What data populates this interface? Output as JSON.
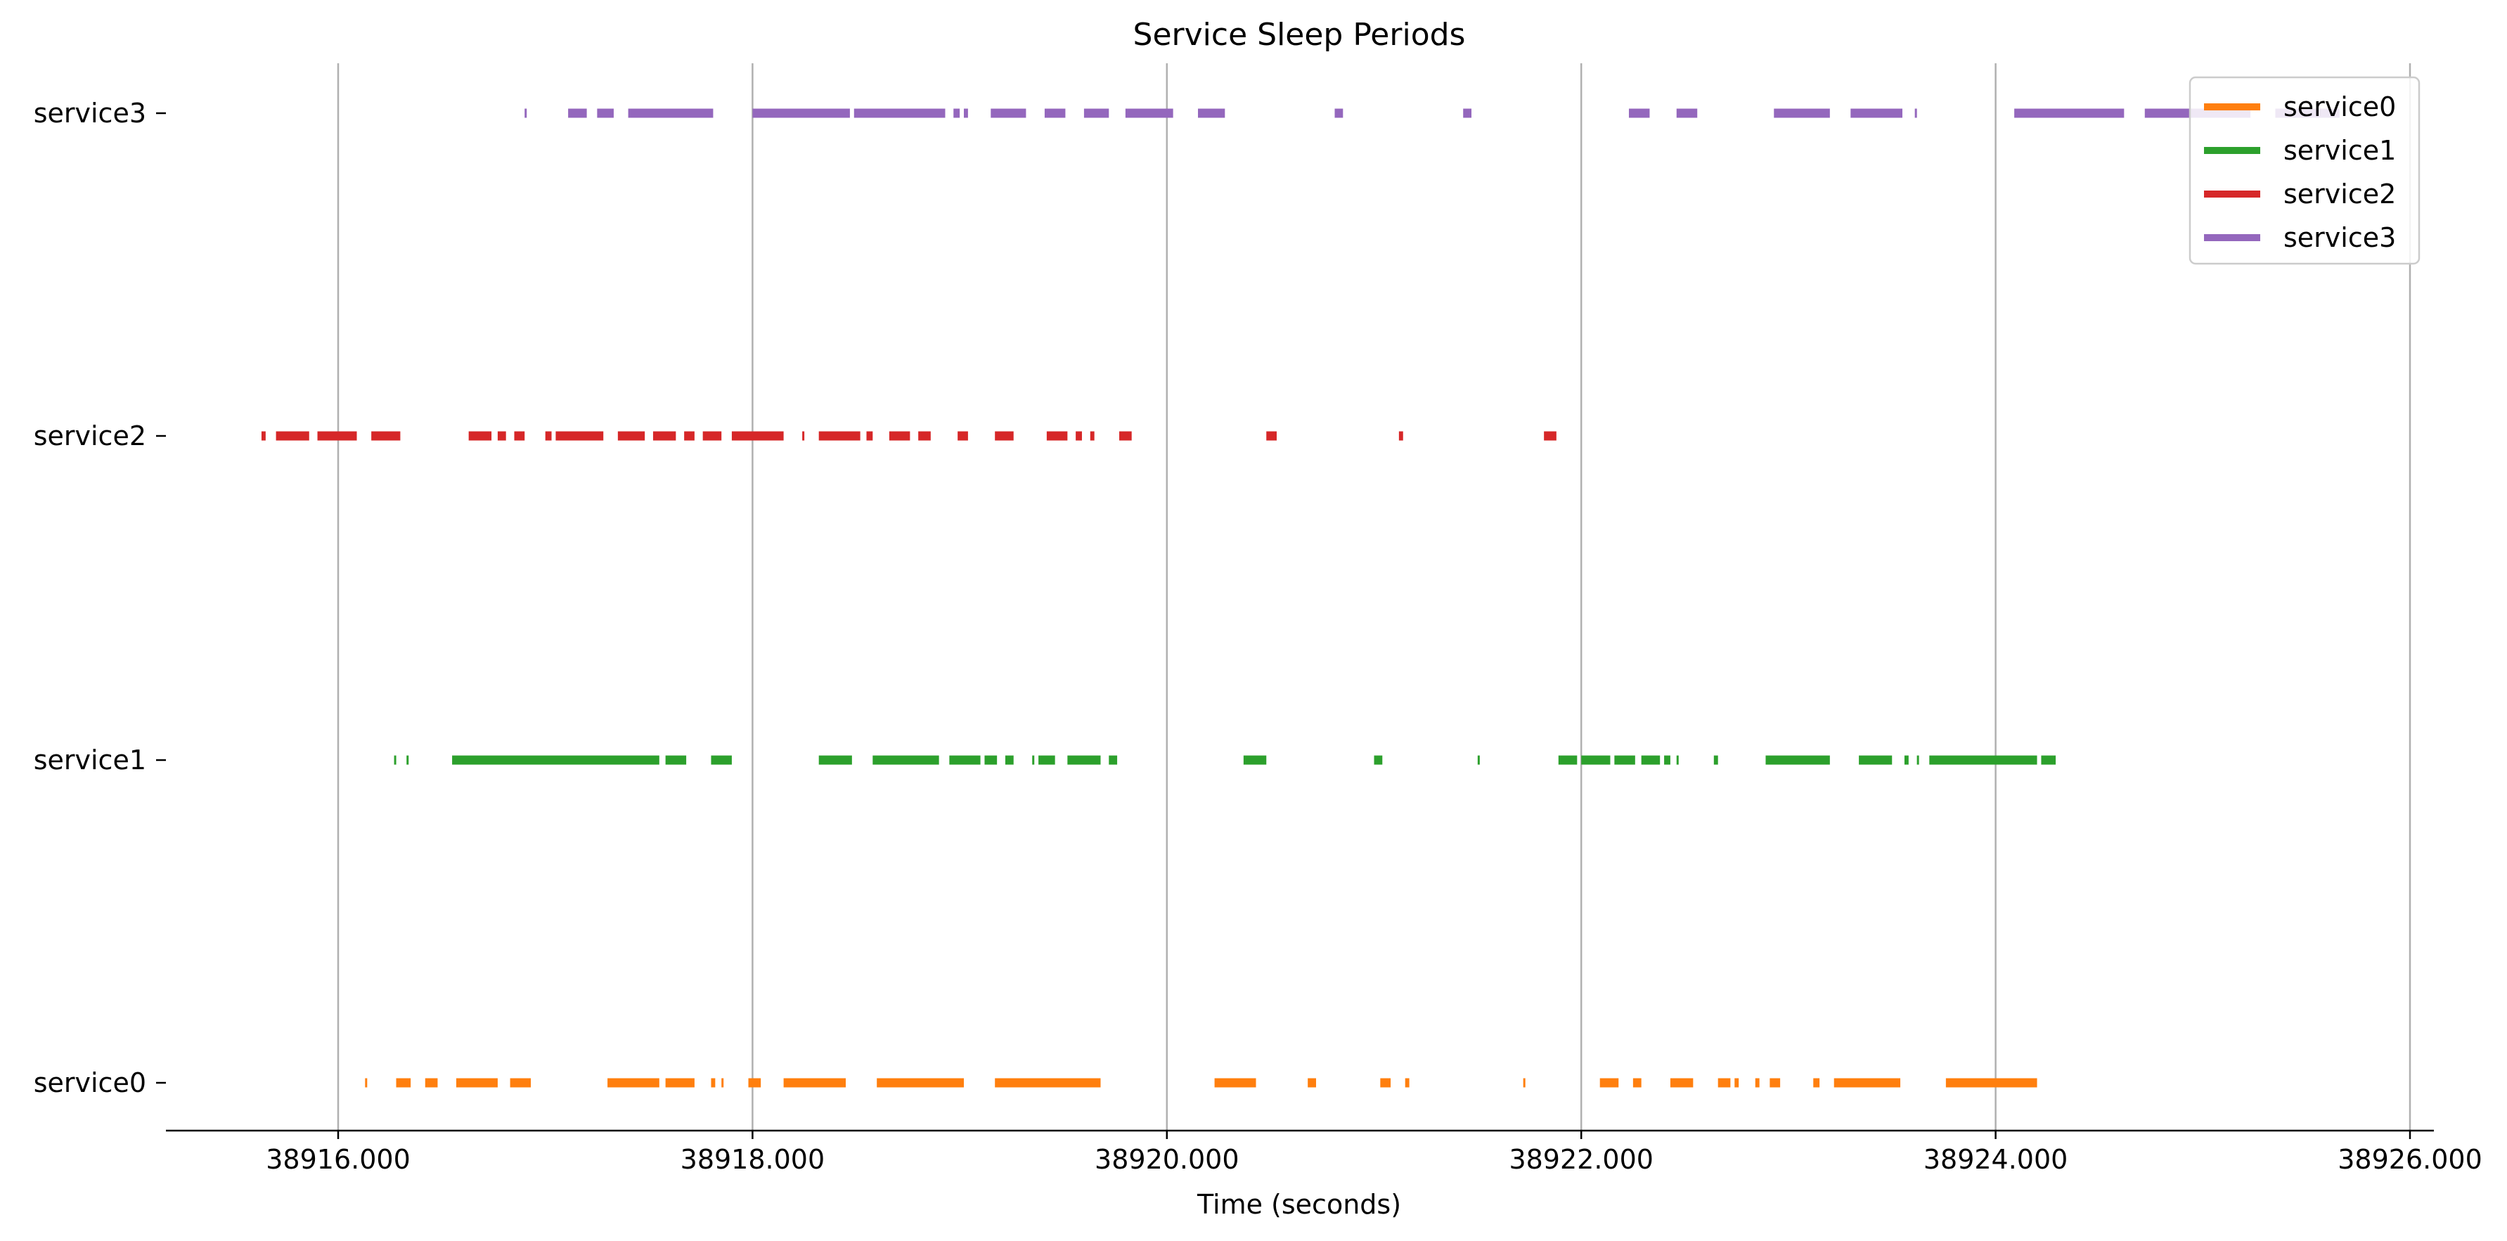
{
  "chart_data": {
    "type": "timeline",
    "title": "Service Sleep Periods",
    "xlabel": "Time (seconds)",
    "ylabel": "",
    "xlim": [
      38915.2,
      38926.1
    ],
    "x_ticks": [
      38916,
      38918,
      38920,
      38922,
      38924,
      38926
    ],
    "x_tick_labels": [
      "38916.000",
      "38918.000",
      "38920.000",
      "38922.000",
      "38924.000",
      "38926.000"
    ],
    "grid": "vertical",
    "legend_position": "top-right",
    "categories": [
      "service0",
      "service1",
      "service2",
      "service3"
    ],
    "series": [
      {
        "name": "service0",
        "color": "#ff7f0e",
        "intervals": [
          [
            38916.13,
            38916.14
          ],
          [
            38916.28,
            38916.35
          ],
          [
            38916.42,
            38916.48
          ],
          [
            38916.57,
            38916.77
          ],
          [
            38916.83,
            38916.93
          ],
          [
            38917.3,
            38917.55
          ],
          [
            38917.58,
            38917.72
          ],
          [
            38917.8,
            38917.82
          ],
          [
            38917.85,
            38917.86
          ],
          [
            38917.98,
            38918.04
          ],
          [
            38918.15,
            38918.45
          ],
          [
            38918.6,
            38919.02
          ],
          [
            38919.17,
            38919.68
          ],
          [
            38920.23,
            38920.43
          ],
          [
            38920.68,
            38920.72
          ],
          [
            38921.03,
            38921.08
          ],
          [
            38921.15,
            38921.17
          ],
          [
            38921.72,
            38921.73
          ],
          [
            38922.09,
            38922.18
          ],
          [
            38922.25,
            38922.29
          ],
          [
            38922.43,
            38922.54
          ],
          [
            38922.66,
            38922.72
          ],
          [
            38922.74,
            38922.76
          ],
          [
            38922.84,
            38922.86
          ],
          [
            38922.91,
            38922.96
          ],
          [
            38923.12,
            38923.15
          ],
          [
            38923.22,
            38923.54
          ],
          [
            38923.76,
            38924.2
          ]
        ]
      },
      {
        "name": "service1",
        "color": "#2ca02c",
        "intervals": [
          [
            38916.27,
            38916.28
          ],
          [
            38916.33,
            38916.34
          ],
          [
            38916.55,
            38917.55
          ],
          [
            38917.58,
            38917.68
          ],
          [
            38917.8,
            38917.9
          ],
          [
            38918.32,
            38918.48
          ],
          [
            38918.58,
            38918.9
          ],
          [
            38918.95,
            38919.1
          ],
          [
            38919.12,
            38919.18
          ],
          [
            38919.22,
            38919.26
          ],
          [
            38919.35,
            38919.36
          ],
          [
            38919.38,
            38919.46
          ],
          [
            38919.52,
            38919.68
          ],
          [
            38919.72,
            38919.76
          ],
          [
            38920.37,
            38920.48
          ],
          [
            38921.0,
            38921.04
          ],
          [
            38921.5,
            38921.51
          ],
          [
            38921.89,
            38921.98
          ],
          [
            38922.0,
            38922.14
          ],
          [
            38922.16,
            38922.26
          ],
          [
            38922.29,
            38922.38
          ],
          [
            38922.4,
            38922.43
          ],
          [
            38922.46,
            38922.47
          ],
          [
            38922.64,
            38922.66
          ],
          [
            38922.89,
            38923.2
          ],
          [
            38923.34,
            38923.5
          ],
          [
            38923.56,
            38923.58
          ],
          [
            38923.62,
            38923.63
          ],
          [
            38923.68,
            38924.2
          ],
          [
            38924.22,
            38924.29
          ]
        ]
      },
      {
        "name": "service2",
        "color": "#d62728",
        "intervals": [
          [
            38915.63,
            38915.65
          ],
          [
            38915.7,
            38915.86
          ],
          [
            38915.9,
            38916.09
          ],
          [
            38916.16,
            38916.3
          ],
          [
            38916.63,
            38916.74
          ],
          [
            38916.77,
            38916.81
          ],
          [
            38916.85,
            38916.9
          ],
          [
            38917.0,
            38917.03
          ],
          [
            38917.05,
            38917.28
          ],
          [
            38917.35,
            38917.48
          ],
          [
            38917.52,
            38917.63
          ],
          [
            38917.67,
            38917.72
          ],
          [
            38917.76,
            38917.85
          ],
          [
            38917.9,
            38918.15
          ],
          [
            38918.24,
            38918.25
          ],
          [
            38918.32,
            38918.52
          ],
          [
            38918.55,
            38918.58
          ],
          [
            38918.66,
            38918.76
          ],
          [
            38918.8,
            38918.86
          ],
          [
            38918.99,
            38919.04
          ],
          [
            38919.17,
            38919.26
          ],
          [
            38919.42,
            38919.52
          ],
          [
            38919.56,
            38919.59
          ],
          [
            38919.63,
            38919.65
          ],
          [
            38919.77,
            38919.83
          ],
          [
            38920.48,
            38920.53
          ],
          [
            38921.12,
            38921.14
          ],
          [
            38921.82,
            38921.88
          ]
        ]
      },
      {
        "name": "service3",
        "color": "#9467bd",
        "intervals": [
          [
            38916.9,
            38916.91
          ],
          [
            38917.11,
            38917.2
          ],
          [
            38917.25,
            38917.33
          ],
          [
            38917.4,
            38917.81
          ],
          [
            38918.0,
            38918.47
          ],
          [
            38918.49,
            38918.93
          ],
          [
            38918.97,
            38919.0
          ],
          [
            38919.02,
            38919.04
          ],
          [
            38919.15,
            38919.32
          ],
          [
            38919.41,
            38919.51
          ],
          [
            38919.6,
            38919.72
          ],
          [
            38919.8,
            38920.03
          ],
          [
            38920.15,
            38920.28
          ],
          [
            38920.81,
            38920.85
          ],
          [
            38921.43,
            38921.47
          ],
          [
            38922.23,
            38922.33
          ],
          [
            38922.46,
            38922.56
          ],
          [
            38922.93,
            38923.2
          ],
          [
            38923.3,
            38923.55
          ],
          [
            38923.61,
            38923.62
          ],
          [
            38924.09,
            38924.62
          ],
          [
            38924.72,
            38925.23
          ],
          [
            38925.35,
            38925.66
          ]
        ]
      }
    ]
  }
}
